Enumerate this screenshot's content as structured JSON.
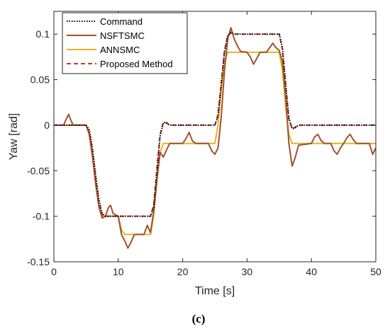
{
  "chart_data": {
    "type": "line",
    "xlabel": "Time [s]",
    "ylabel": "Yaw [rad]",
    "xlim": [
      0,
      50
    ],
    "ylim": [
      -0.15,
      0.125
    ],
    "xticks": [
      0,
      10,
      20,
      30,
      40,
      50
    ],
    "yticks": [
      -0.15,
      -0.1,
      -0.05,
      0,
      0.05,
      0.1
    ],
    "x_tick_labels": [
      "0",
      "10",
      "20",
      "30",
      "40",
      "50"
    ],
    "y_tick_labels": [
      "-0.15",
      "-0.1",
      "-0.05",
      "0",
      "0.05",
      "0.1"
    ],
    "grid": false,
    "legend_position": "top-left",
    "series": [
      {
        "name": "Command",
        "color": "#000000",
        "style": "dotted",
        "points": [
          [
            0,
            0
          ],
          [
            5,
            0
          ],
          [
            5.5,
            -0.005
          ],
          [
            6,
            -0.025
          ],
          [
            6.5,
            -0.055
          ],
          [
            7,
            -0.082
          ],
          [
            7.5,
            -0.097
          ],
          [
            8,
            -0.1
          ],
          [
            15,
            -0.1
          ],
          [
            15.5,
            -0.09
          ],
          [
            16,
            -0.05
          ],
          [
            16.5,
            -0.012
          ],
          [
            17,
            0.003
          ],
          [
            17.5,
            0.003
          ],
          [
            18,
            0
          ],
          [
            25,
            0
          ],
          [
            25.5,
            0.01
          ],
          [
            26,
            0.045
          ],
          [
            26.5,
            0.08
          ],
          [
            27,
            0.098
          ],
          [
            27.5,
            0.102
          ],
          [
            28,
            0.1
          ],
          [
            35,
            0.1
          ],
          [
            35.5,
            0.085
          ],
          [
            36,
            0.045
          ],
          [
            36.5,
            0.008
          ],
          [
            37,
            -0.004
          ],
          [
            37.5,
            -0.003
          ],
          [
            38,
            0
          ],
          [
            50,
            0
          ]
        ]
      },
      {
        "name": "NSFTSMC",
        "color": "#a0522d",
        "style": "solid",
        "points": [
          [
            0,
            0
          ],
          [
            1.5,
            0
          ],
          [
            2,
            0.008
          ],
          [
            2.3,
            0.012
          ],
          [
            2.6,
            0.006
          ],
          [
            3,
            0
          ],
          [
            5,
            0
          ],
          [
            5.5,
            -0.01
          ],
          [
            6,
            -0.035
          ],
          [
            6.5,
            -0.065
          ],
          [
            7,
            -0.09
          ],
          [
            7.5,
            -0.102
          ],
          [
            8,
            -0.1
          ],
          [
            8.5,
            -0.09
          ],
          [
            8.8,
            -0.088
          ],
          [
            9.2,
            -0.097
          ],
          [
            10,
            -0.1
          ],
          [
            10.5,
            -0.12
          ],
          [
            11,
            -0.127
          ],
          [
            11.5,
            -0.135
          ],
          [
            12,
            -0.128
          ],
          [
            12.5,
            -0.12
          ],
          [
            14,
            -0.12
          ],
          [
            14.5,
            -0.11
          ],
          [
            15,
            -0.118
          ],
          [
            15.5,
            -0.095
          ],
          [
            16,
            -0.06
          ],
          [
            16.5,
            -0.03
          ],
          [
            17,
            -0.035
          ],
          [
            17.5,
            -0.027
          ],
          [
            18,
            -0.02
          ],
          [
            20,
            -0.02
          ],
          [
            20.5,
            -0.015
          ],
          [
            21,
            -0.008
          ],
          [
            21.5,
            -0.017
          ],
          [
            22,
            -0.02
          ],
          [
            24,
            -0.02
          ],
          [
            24.5,
            -0.028
          ],
          [
            25,
            -0.032
          ],
          [
            25.5,
            -0.025
          ],
          [
            26,
            0.01
          ],
          [
            26.5,
            0.06
          ],
          [
            27,
            0.095
          ],
          [
            27.5,
            0.107
          ],
          [
            28,
            0.095
          ],
          [
            28.5,
            0.087
          ],
          [
            29,
            0.081
          ],
          [
            30,
            0.08
          ],
          [
            30.5,
            0.075
          ],
          [
            31,
            0.067
          ],
          [
            31.5,
            0.073
          ],
          [
            32,
            0.08
          ],
          [
            33,
            0.08
          ],
          [
            33.5,
            0.085
          ],
          [
            34,
            0.09
          ],
          [
            34.5,
            0.085
          ],
          [
            35,
            0.082
          ],
          [
            35.5,
            0.07
          ],
          [
            36,
            0.03
          ],
          [
            36.5,
            -0.02
          ],
          [
            37,
            -0.045
          ],
          [
            37.5,
            -0.035
          ],
          [
            38,
            -0.022
          ],
          [
            40,
            -0.02
          ],
          [
            40.5,
            -0.013
          ],
          [
            41,
            -0.01
          ],
          [
            41.5,
            -0.017
          ],
          [
            42,
            -0.02
          ],
          [
            43,
            -0.02
          ],
          [
            43.5,
            -0.028
          ],
          [
            44,
            -0.032
          ],
          [
            44.5,
            -0.025
          ],
          [
            45,
            -0.02
          ],
          [
            45.5,
            -0.014
          ],
          [
            46,
            -0.01
          ],
          [
            46.5,
            -0.016
          ],
          [
            47,
            -0.02
          ],
          [
            49,
            -0.02
          ],
          [
            49.5,
            -0.032
          ],
          [
            50,
            -0.025
          ]
        ]
      },
      {
        "name": "ANNSMC",
        "color": "#e6b325",
        "style": "solid",
        "points": [
          [
            0,
            0
          ],
          [
            5,
            0
          ],
          [
            5.5,
            -0.01
          ],
          [
            6,
            -0.035
          ],
          [
            6.5,
            -0.065
          ],
          [
            7,
            -0.09
          ],
          [
            7.5,
            -0.1
          ],
          [
            8,
            -0.1
          ],
          [
            10,
            -0.1
          ],
          [
            10.5,
            -0.115
          ],
          [
            11,
            -0.12
          ],
          [
            15,
            -0.12
          ],
          [
            15.5,
            -0.1
          ],
          [
            16,
            -0.06
          ],
          [
            16.5,
            -0.03
          ],
          [
            17,
            -0.02
          ],
          [
            25,
            -0.02
          ],
          [
            25.5,
            0
          ],
          [
            26,
            0.04
          ],
          [
            26.5,
            0.07
          ],
          [
            27,
            0.08
          ],
          [
            35,
            0.08
          ],
          [
            35.5,
            0.06
          ],
          [
            36,
            0.02
          ],
          [
            36.5,
            -0.01
          ],
          [
            37,
            -0.02
          ],
          [
            50,
            -0.02
          ]
        ]
      },
      {
        "name": "Proposed Method",
        "color": "#c0392b",
        "style": "dashed",
        "points": [
          [
            0,
            0
          ],
          [
            5,
            0
          ],
          [
            5.5,
            -0.008
          ],
          [
            6,
            -0.03
          ],
          [
            6.5,
            -0.06
          ],
          [
            7,
            -0.085
          ],
          [
            7.5,
            -0.098
          ],
          [
            8,
            -0.1
          ],
          [
            15,
            -0.1
          ],
          [
            15.5,
            -0.088
          ],
          [
            16,
            -0.048
          ],
          [
            16.5,
            -0.01
          ],
          [
            17,
            0.003
          ],
          [
            17.5,
            0.002
          ],
          [
            18,
            0
          ],
          [
            25,
            0
          ],
          [
            25.5,
            0.012
          ],
          [
            26,
            0.047
          ],
          [
            26.5,
            0.082
          ],
          [
            27,
            0.099
          ],
          [
            27.5,
            0.101
          ],
          [
            28,
            0.1
          ],
          [
            35,
            0.1
          ],
          [
            35.5,
            0.083
          ],
          [
            36,
            0.043
          ],
          [
            36.5,
            0.006
          ],
          [
            37,
            -0.004
          ],
          [
            37.5,
            -0.002
          ],
          [
            38,
            0
          ],
          [
            50,
            0
          ]
        ]
      }
    ]
  },
  "caption": "(c)"
}
